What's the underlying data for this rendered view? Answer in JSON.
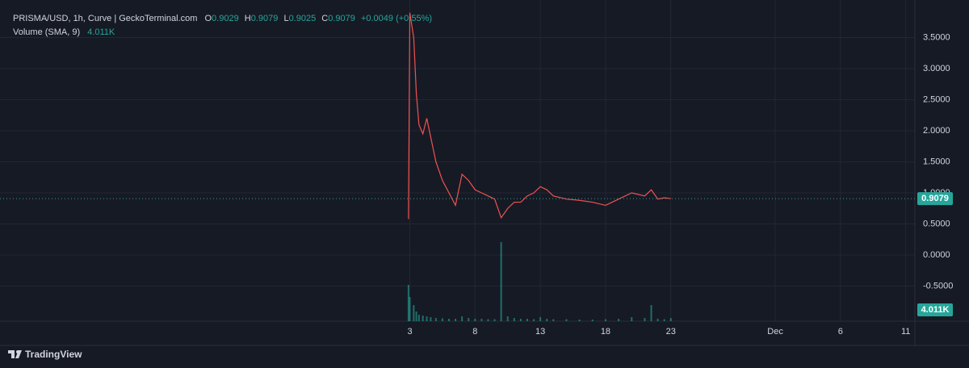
{
  "chart_data": {
    "type": "line",
    "title": "PRISMA/USD, 1h, Curve | GeckoTerminal.com",
    "ohlc": [
      {
        "label": "O",
        "value": 0.9029
      },
      {
        "label": "H",
        "value": 0.9079
      },
      {
        "label": "L",
        "value": 0.9025
      },
      {
        "label": "C",
        "value": 0.9079
      }
    ],
    "change_label": "+0.0049 (+0.55%)",
    "volume_title": "Volume (SMA, 9)",
    "last_volume": {
      "value": 4011,
      "label": "4.011K"
    },
    "last_price": 0.9079,
    "x": [
      2.9,
      3.0,
      3.3,
      3.5,
      3.7,
      4.0,
      4.3,
      4.6,
      5.0,
      5.5,
      6.0,
      6.5,
      7.0,
      7.5,
      8.0,
      8.5,
      9.0,
      9.5,
      10.0,
      10.5,
      11.0,
      11.5,
      12.0,
      12.5,
      13.0,
      13.5,
      14.0,
      15.0,
      16.0,
      17.0,
      18.0,
      19.0,
      20.0,
      21.0,
      21.5,
      22.0,
      22.5,
      23.0
    ],
    "series": [
      {
        "color": "#ef5350",
        "values": [
          0.58,
          3.9,
          3.5,
          2.6,
          2.1,
          1.95,
          2.2,
          1.9,
          1.5,
          1.2,
          1.0,
          0.8,
          1.3,
          1.2,
          1.05,
          1.0,
          0.95,
          0.9,
          0.6,
          0.75,
          0.85,
          0.85,
          0.95,
          1.0,
          1.1,
          1.05,
          0.95,
          0.9,
          0.88,
          0.85,
          0.8,
          0.9,
          1.0,
          0.95,
          1.05,
          0.9,
          0.92,
          0.9079
        ]
      },
      {
        "color": "#26a69a",
        "axis": "y2",
        "values": [
          45000,
          30000,
          20000,
          12000,
          8000,
          7000,
          6000,
          5000,
          4000,
          3500,
          3000,
          3000,
          6000,
          4000,
          3000,
          3000,
          2500,
          2500,
          98000,
          6000,
          4000,
          3000,
          3000,
          2500,
          5000,
          3000,
          2500,
          2500,
          2000,
          2000,
          2500,
          3000,
          5000,
          4000,
          20000,
          3000,
          2500,
          4011
        ]
      }
    ],
    "xlim": [
      -28.4,
      41.7
    ],
    "xticks": [
      3,
      8,
      13,
      18,
      23,
      {
        "value": 31,
        "label": "Dec"
      },
      {
        "value": 36,
        "label": "6"
      },
      {
        "value": 41,
        "label": "11"
      }
    ],
    "ylim": [
      -1.065,
      4.0
    ],
    "yticks": [
      {
        "value": -0.5,
        "label": "-0.5000"
      },
      {
        "value": 0,
        "label": "0.0000"
      },
      {
        "value": 0.5,
        "label": "0.5000"
      },
      {
        "value": 1.0,
        "label": "1.0000"
      },
      {
        "value": 1.5,
        "label": "1.5000"
      },
      {
        "value": 2.0,
        "label": "2.0000"
      },
      {
        "value": 2.5,
        "label": "2.5000"
      },
      {
        "value": 3.0,
        "label": "3.0000"
      },
      {
        "value": 3.5,
        "label": "3.5000"
      }
    ],
    "y2lim": [
      0,
      100000
    ],
    "grid": true
  },
  "branding": "TradingView"
}
